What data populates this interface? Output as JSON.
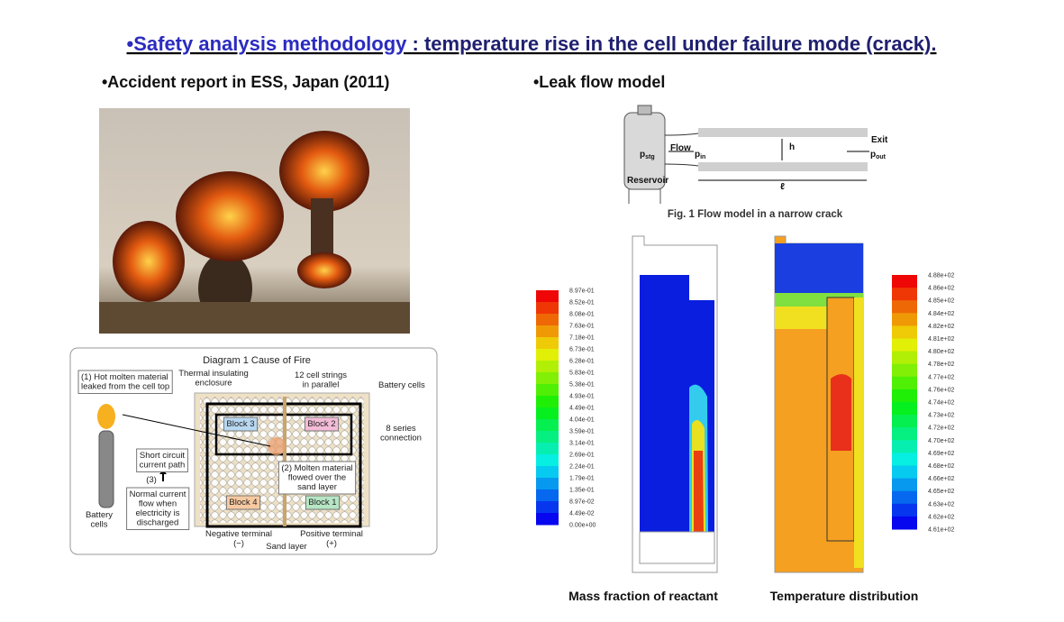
{
  "title": {
    "lead": "•Safety analysis methodology",
    "rest": " : temperature rise in the cell under failure mode (crack)."
  },
  "bullets": [
    "•Accident report in ESS, Japan (2011)",
    "•Leak flow model"
  ],
  "diagram": {
    "title": "Diagram 1  Cause of Fire",
    "labels": [
      {
        "lines": [
          "(1) Hot molten material",
          "leaked from the cell top"
        ]
      },
      {
        "lines": [
          "Thermal insulating",
          "enclosure"
        ]
      },
      {
        "lines": [
          "12 cell strings",
          "in parallel"
        ]
      },
      {
        "lines": [
          "Battery cells"
        ]
      },
      {
        "lines": [
          "Block 3"
        ]
      },
      {
        "lines": [
          "Block 2"
        ]
      },
      {
        "lines": [
          "8 series",
          "connection"
        ]
      },
      {
        "lines": [
          "Short circuit",
          "current path"
        ]
      },
      {
        "lines": [
          "(3)"
        ]
      },
      {
        "lines": [
          "(2) Molten material",
          "flowed over the",
          "sand layer"
        ]
      },
      {
        "lines": [
          "Normal current",
          "flow when",
          "electricity is",
          "discharged"
        ]
      },
      {
        "lines": [
          "Block 4"
        ]
      },
      {
        "lines": [
          "Block 1"
        ]
      },
      {
        "lines": [
          "Battery",
          "cells"
        ]
      },
      {
        "lines": [
          "Negative terminal",
          "(−)"
        ]
      },
      {
        "lines": [
          "Positive terminal",
          "(+)"
        ]
      },
      {
        "lines": [
          "Sand layer"
        ]
      }
    ]
  },
  "flow_model": {
    "labels": [
      {
        "base": "p",
        "sub": "stg"
      },
      {
        "base": "Reservoir"
      },
      {
        "base": "Flow"
      },
      {
        "base": "p",
        "sub": "in"
      },
      {
        "base": "h"
      },
      {
        "base": "Exit"
      },
      {
        "base": "p",
        "sub": "out"
      },
      {
        "base": "ℓ"
      }
    ],
    "caption": "Fig. 1   Flow model in a narrow crack"
  },
  "colorbars": [
    {
      "labels": [
        "8.97e-01",
        "8.52e-01",
        "8.08e-01",
        "7.63e-01",
        "7.18e-01",
        "6.73e-01",
        "6.28e-01",
        "5.83e-01",
        "5.38e-01",
        "4.93e-01",
        "4.49e-01",
        "4.04e-01",
        "3.59e-01",
        "3.14e-01",
        "2.69e-01",
        "2.24e-01",
        "1.79e-01",
        "1.35e-01",
        "8.97e-02",
        "4.49e-02",
        "0.00e+00"
      ]
    },
    {
      "labels": [
        "4.88e+02",
        "4.86e+02",
        "4.85e+02",
        "4.84e+02",
        "4.82e+02",
        "4.81e+02",
        "4.80e+02",
        "4.78e+02",
        "4.77e+02",
        "4.76e+02",
        "4.74e+02",
        "4.73e+02",
        "4.72e+02",
        "4.70e+02",
        "4.69e+02",
        "4.68e+02",
        "4.66e+02",
        "4.65e+02",
        "4.63e+02",
        "4.62e+02",
        "4.61e+02"
      ]
    }
  ],
  "captions": [
    "Mass fraction of reactant",
    "Temperature distribution"
  ]
}
